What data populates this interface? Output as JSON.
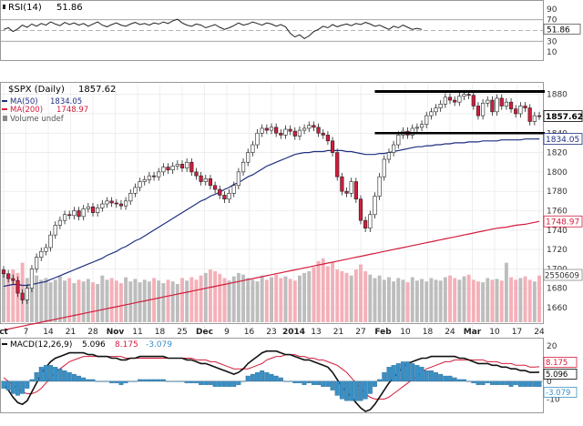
{
  "chart_data": [
    {
      "panel": "rsi",
      "type": "line",
      "title": "RSI(14)",
      "value_text": "51.86",
      "yticks": [
        90,
        70,
        50,
        30,
        10
      ],
      "ylim": [
        0,
        100
      ],
      "levels": [
        70,
        50,
        30
      ],
      "last_value_label": "51.86",
      "colors": {
        "line": "#222222",
        "band": "#888888"
      },
      "values": [
        52,
        55,
        48,
        53,
        60,
        56,
        62,
        58,
        63,
        60,
        66,
        62,
        59,
        65,
        61,
        64,
        60,
        63,
        58,
        62,
        66,
        60,
        57,
        61,
        64,
        60,
        58,
        62,
        65,
        61,
        63,
        60,
        64,
        62,
        66,
        63,
        68,
        71,
        64,
        60,
        58,
        62,
        60,
        55,
        58,
        61,
        56,
        52,
        55,
        59,
        64,
        60,
        62,
        66,
        63,
        60,
        64,
        62,
        58,
        61,
        57,
        45,
        38,
        42,
        35,
        40,
        48,
        52,
        58,
        55,
        61,
        57,
        60,
        62,
        59,
        63,
        61,
        65,
        62,
        58,
        60,
        56,
        52,
        58,
        55,
        60,
        56,
        52,
        54,
        51.86
      ]
    },
    {
      "panel": "price",
      "type": "candlestick",
      "title": "$SPX (Daily)",
      "value_text": "1857.62",
      "legend": [
        {
          "label": "MA(50)",
          "value": "1834.05",
          "color": "#1f2f80"
        },
        {
          "label": "MA(200)",
          "value": "1748.97",
          "color": "#d21c3c"
        },
        {
          "label": "Volume undef",
          "value": "",
          "color": "#888888"
        }
      ],
      "x_tick_labels": [
        "ct",
        "7",
        "14",
        "21",
        "28",
        "Nov",
        "11",
        "18",
        "25",
        "Dec",
        "9",
        "16",
        "23",
        "2014",
        "13",
        "21",
        "27",
        "Feb",
        "10",
        "18",
        "24",
        "Mar",
        "10",
        "17",
        "24"
      ],
      "yticks": [
        1880,
        1860,
        1840,
        1820,
        1800,
        1780,
        1760,
        1740,
        1720,
        1700,
        1680,
        1660
      ],
      "ylim": [
        1645,
        1890
      ],
      "volume_axis_label": "2550609",
      "price_tags": [
        {
          "value": 1857.62,
          "label": "1857.62",
          "style": "current"
        },
        {
          "value": 1834.05,
          "label": "1834.05",
          "style": "ma50"
        },
        {
          "value": 1748.97,
          "label": "1748.97",
          "style": "ma200"
        }
      ],
      "resistance": 1883,
      "support": 1840,
      "colors": {
        "up": "#ffffff",
        "down": "#d21c3c",
        "outline": "#222222",
        "ma50": "#1f2f80",
        "ma200": "#d21c3c",
        "vol_up": "#bdbdbd",
        "vol_down": "#f4b0b8"
      },
      "close": [
        1695,
        1690,
        1688,
        1675,
        1668,
        1680,
        1700,
        1712,
        1718,
        1722,
        1735,
        1745,
        1750,
        1756,
        1755,
        1760,
        1754,
        1762,
        1764,
        1758,
        1763,
        1767,
        1770,
        1768,
        1767,
        1765,
        1770,
        1778,
        1784,
        1790,
        1792,
        1796,
        1795,
        1800,
        1805,
        1802,
        1806,
        1808,
        1804,
        1810,
        1800,
        1796,
        1790,
        1793,
        1786,
        1782,
        1776,
        1772,
        1778,
        1786,
        1800,
        1810,
        1820,
        1828,
        1840,
        1845,
        1843,
        1846,
        1840,
        1838,
        1844,
        1842,
        1837,
        1843,
        1845,
        1848,
        1846,
        1840,
        1838,
        1832,
        1820,
        1795,
        1780,
        1778,
        1790,
        1772,
        1750,
        1742,
        1756,
        1775,
        1795,
        1813,
        1820,
        1828,
        1838,
        1842,
        1838,
        1845,
        1846,
        1849,
        1858,
        1862,
        1866,
        1870,
        1877,
        1874,
        1872,
        1878,
        1880,
        1879,
        1868,
        1858,
        1871,
        1874,
        1862,
        1876,
        1868,
        1872,
        1865,
        1860,
        1868,
        1866,
        1852,
        1858,
        1857.62
      ],
      "ma50": [
        1682,
        1683,
        1684,
        1684,
        1683,
        1683,
        1684,
        1685,
        1686,
        1687,
        1689,
        1691,
        1693,
        1695,
        1697,
        1699,
        1701,
        1703,
        1705,
        1707,
        1709,
        1711,
        1714,
        1716,
        1718,
        1721,
        1723,
        1726,
        1729,
        1731,
        1734,
        1737,
        1740,
        1743,
        1746,
        1749,
        1752,
        1755,
        1758,
        1761,
        1764,
        1767,
        1770,
        1772,
        1775,
        1777,
        1779,
        1782,
        1784,
        1787,
        1789,
        1792,
        1795,
        1797,
        1800,
        1803,
        1806,
        1808,
        1810,
        1812,
        1814,
        1816,
        1818,
        1819,
        1820,
        1820,
        1821,
        1821,
        1821,
        1822,
        1822,
        1822,
        1822,
        1821,
        1821,
        1820,
        1819,
        1818,
        1818,
        1818,
        1819,
        1819,
        1820,
        1821,
        1822,
        1823,
        1824,
        1825,
        1826,
        1826,
        1827,
        1827,
        1828,
        1828,
        1829,
        1829,
        1830,
        1830,
        1830,
        1831,
        1831,
        1831,
        1832,
        1832,
        1832,
        1832,
        1833,
        1833,
        1833,
        1833,
        1833,
        1834,
        1834,
        1834,
        1834.05
      ],
      "ma200": [
        1637,
        1638,
        1639,
        1640,
        1641,
        1642,
        1643,
        1644,
        1645,
        1646,
        1647,
        1648,
        1649,
        1650,
        1651,
        1652,
        1653,
        1654,
        1655,
        1656,
        1657,
        1658,
        1659,
        1660,
        1661,
        1662,
        1663,
        1664,
        1665,
        1666,
        1667,
        1668,
        1669,
        1670,
        1671,
        1672,
        1673,
        1674,
        1675,
        1676,
        1677,
        1678,
        1679,
        1680,
        1681,
        1682,
        1683,
        1684,
        1685,
        1686,
        1687,
        1688,
        1689,
        1690,
        1691,
        1692,
        1693,
        1694,
        1695,
        1696,
        1697,
        1698,
        1699,
        1700,
        1701,
        1702,
        1703,
        1704,
        1705,
        1706,
        1707,
        1708,
        1709,
        1710,
        1711,
        1712,
        1713,
        1714,
        1715,
        1716,
        1717,
        1718,
        1719,
        1720,
        1721,
        1722,
        1723,
        1724,
        1725,
        1726,
        1727,
        1728,
        1729,
        1730,
        1731,
        1732,
        1733,
        1734,
        1735,
        1736,
        1737,
        1738,
        1739,
        1740,
        1741,
        1742,
        1742.5,
        1743,
        1744,
        1745,
        1745.5,
        1746,
        1747,
        1748,
        1748.97
      ],
      "volume": [
        60,
        55,
        62,
        58,
        70,
        52,
        48,
        55,
        50,
        52,
        47,
        50,
        54,
        49,
        52,
        46,
        50,
        48,
        51,
        47,
        45,
        55,
        50,
        52,
        49,
        46,
        53,
        48,
        51,
        47,
        50,
        48,
        52,
        49,
        46,
        50,
        48,
        45,
        52,
        49,
        53,
        50,
        55,
        58,
        62,
        60,
        57,
        52,
        49,
        54,
        58,
        56,
        52,
        50,
        48,
        55,
        50,
        53,
        56,
        52,
        54,
        51,
        49,
        55,
        58,
        60,
        65,
        72,
        75,
        66,
        70,
        62,
        60,
        58,
        55,
        62,
        68,
        60,
        56,
        52,
        55,
        50,
        53,
        48,
        52,
        50,
        47,
        53,
        49,
        51,
        48,
        52,
        50,
        49,
        53,
        55,
        52,
        50,
        54,
        56,
        50,
        48,
        47,
        52,
        50,
        51,
        49,
        70,
        53,
        50,
        52,
        54,
        50,
        48,
        55
      ]
    },
    {
      "panel": "macd",
      "type": "line",
      "title": "MACD(12,26,9)",
      "value_text": [
        "5.096",
        "8.175",
        "-3.079"
      ],
      "yticks": [
        20,
        10,
        0,
        -10
      ],
      "ylim": [
        -17,
        23
      ],
      "last_value_labels": [
        "8.175",
        "5.096",
        "-3.079"
      ],
      "colors": {
        "macd": "#111111",
        "signal": "#d21c3c",
        "hist": "#3a8fc4"
      },
      "macd": [
        -2,
        -5,
        -9,
        -12,
        -13,
        -11,
        -6,
        -1,
        4,
        8,
        11,
        13,
        14,
        15,
        16,
        16,
        16,
        16,
        15,
        15,
        14,
        14,
        14,
        13,
        13,
        12,
        12,
        13,
        13,
        14,
        14,
        14,
        14,
        14,
        14,
        13,
        13,
        13,
        13,
        12,
        12,
        11,
        10,
        10,
        9,
        8,
        7,
        6,
        5,
        4,
        5,
        7,
        10,
        12,
        14,
        16,
        17,
        17,
        17,
        16,
        15,
        15,
        14,
        13,
        12,
        12,
        11,
        10,
        9,
        8,
        5,
        1,
        -3,
        -6,
        -9,
        -12,
        -15,
        -17,
        -16,
        -13,
        -9,
        -5,
        -1,
        2,
        5,
        8,
        10,
        11,
        12,
        13,
        13,
        14,
        14,
        14,
        14,
        14,
        14,
        13,
        13,
        12,
        11,
        10,
        10,
        10,
        9,
        9,
        8,
        8,
        7,
        7,
        6,
        6,
        5,
        5,
        5.1
      ],
      "signal": [
        2,
        0,
        -2,
        -4,
        -6,
        -7,
        -7,
        -6,
        -4,
        -1,
        2,
        5,
        7,
        9,
        11,
        12,
        13,
        14,
        14,
        14,
        14,
        14,
        14,
        14,
        14,
        14,
        13,
        13,
        13,
        13,
        13,
        13,
        13,
        13,
        13,
        13,
        13,
        13,
        13,
        13,
        13,
        12,
        12,
        12,
        11,
        11,
        10,
        9,
        8,
        7,
        7,
        7,
        7,
        8,
        9,
        10,
        12,
        13,
        14,
        14,
        15,
        15,
        15,
        14,
        14,
        13,
        13,
        12,
        12,
        11,
        10,
        9,
        7,
        5,
        2,
        -1,
        -4,
        -7,
        -9,
        -10,
        -10,
        -10,
        -9,
        -7,
        -5,
        -3,
        -1,
        1,
        3,
        5,
        7,
        8,
        9,
        10,
        11,
        11,
        12,
        12,
        12,
        12,
        12,
        12,
        12,
        11,
        11,
        11,
        10,
        10,
        10,
        9,
        9,
        9,
        8,
        8,
        8.2
      ],
      "hist": [
        -4,
        -5,
        -7,
        -8,
        -7,
        -4,
        1,
        5,
        8,
        9,
        9,
        8,
        7,
        6,
        5,
        4,
        3,
        2,
        1,
        1,
        0,
        0,
        0,
        -1,
        -1,
        -2,
        -1,
        0,
        0,
        1,
        1,
        1,
        1,
        1,
        1,
        0,
        0,
        0,
        0,
        -1,
        -1,
        -1,
        -2,
        -2,
        -2,
        -3,
        -3,
        -3,
        -3,
        -3,
        -2,
        0,
        3,
        4,
        5,
        6,
        5,
        4,
        3,
        2,
        0,
        0,
        -1,
        -1,
        -2,
        -1,
        -2,
        -2,
        -3,
        -3,
        -5,
        -8,
        -10,
        -11,
        -11,
        -11,
        -11,
        -10,
        -7,
        -3,
        1,
        5,
        8,
        9,
        10,
        11,
        11,
        10,
        9,
        8,
        6,
        6,
        5,
        4,
        3,
        3,
        2,
        1,
        1,
        0,
        -1,
        -2,
        -2,
        -1,
        -2,
        -2,
        -2,
        -2,
        -3,
        -2,
        -3,
        -3,
        -3,
        -3,
        -3.1
      ]
    }
  ]
}
